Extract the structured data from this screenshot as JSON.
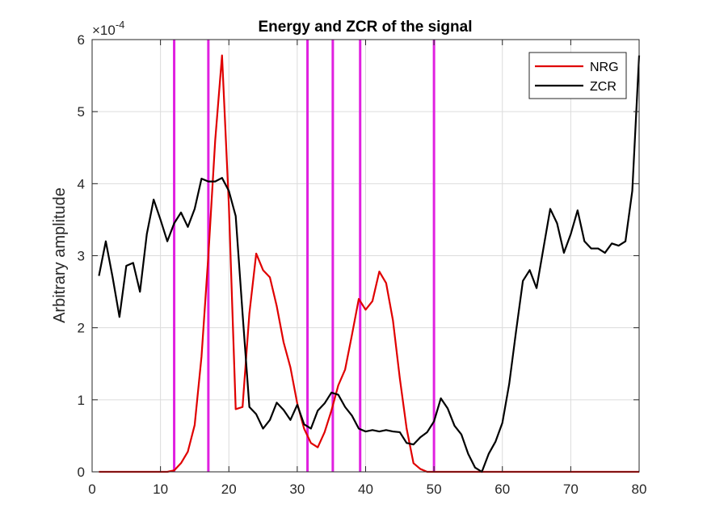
{
  "chart_data": {
    "type": "line",
    "title": "Energy and ZCR  of the signal",
    "xlabel": "",
    "ylabel": "Arbitrary amplitude",
    "xlim": [
      0,
      80
    ],
    "ylim": [
      0,
      6
    ],
    "y_exponent_label": "×10",
    "y_exponent_power": "-4",
    "xticks": [
      0,
      10,
      20,
      30,
      40,
      50,
      60,
      70,
      80
    ],
    "yticks": [
      0,
      1,
      2,
      3,
      4,
      5,
      6
    ],
    "grid": true,
    "legend_position": "top-right",
    "series": [
      {
        "name": "NRG",
        "color": "#e00000",
        "points": [
          [
            1,
            0
          ],
          [
            2,
            0
          ],
          [
            3,
            0
          ],
          [
            4,
            0
          ],
          [
            5,
            0
          ],
          [
            6,
            0
          ],
          [
            7,
            0
          ],
          [
            8,
            0
          ],
          [
            9,
            0
          ],
          [
            10,
            0
          ],
          [
            11,
            0
          ],
          [
            12,
            0.02
          ],
          [
            13,
            0.12
          ],
          [
            14,
            0.28
          ],
          [
            15,
            0.65
          ],
          [
            16,
            1.6
          ],
          [
            17,
            3.0
          ],
          [
            18,
            4.6
          ],
          [
            19,
            5.78
          ],
          [
            20,
            3.7
          ],
          [
            21,
            0.87
          ],
          [
            22,
            0.9
          ],
          [
            23,
            2.2
          ],
          [
            24,
            3.03
          ],
          [
            25,
            2.8
          ],
          [
            26,
            2.7
          ],
          [
            27,
            2.3
          ],
          [
            28,
            1.8
          ],
          [
            29,
            1.45
          ],
          [
            30,
            0.95
          ],
          [
            31,
            0.6
          ],
          [
            32,
            0.4
          ],
          [
            33,
            0.34
          ],
          [
            34,
            0.55
          ],
          [
            35,
            0.85
          ],
          [
            36,
            1.2
          ],
          [
            37,
            1.42
          ],
          [
            38,
            1.9
          ],
          [
            39,
            2.4
          ],
          [
            40,
            2.25
          ],
          [
            41,
            2.37
          ],
          [
            42,
            2.78
          ],
          [
            43,
            2.62
          ],
          [
            44,
            2.1
          ],
          [
            45,
            1.3
          ],
          [
            46,
            0.6
          ],
          [
            47,
            0.12
          ],
          [
            48,
            0.04
          ],
          [
            49,
            0
          ],
          [
            50,
            0
          ],
          [
            51,
            0
          ],
          [
            52,
            0
          ],
          [
            53,
            0
          ],
          [
            54,
            0
          ],
          [
            55,
            0
          ],
          [
            56,
            0
          ],
          [
            57,
            0
          ],
          [
            58,
            0
          ],
          [
            59,
            0
          ],
          [
            60,
            0
          ],
          [
            61,
            0
          ],
          [
            62,
            0
          ],
          [
            63,
            0
          ],
          [
            64,
            0
          ],
          [
            65,
            0
          ],
          [
            66,
            0
          ],
          [
            67,
            0
          ],
          [
            68,
            0
          ],
          [
            69,
            0
          ],
          [
            70,
            0
          ],
          [
            71,
            0
          ],
          [
            72,
            0
          ],
          [
            73,
            0
          ],
          [
            74,
            0
          ],
          [
            75,
            0
          ],
          [
            76,
            0
          ],
          [
            77,
            0
          ],
          [
            78,
            0
          ],
          [
            79,
            0
          ],
          [
            80,
            0
          ]
        ]
      },
      {
        "name": "ZCR",
        "color": "#000000",
        "points": [
          [
            1,
            2.72
          ],
          [
            2,
            3.2
          ],
          [
            3,
            2.7
          ],
          [
            4,
            2.15
          ],
          [
            5,
            2.86
          ],
          [
            6,
            2.9
          ],
          [
            7,
            2.5
          ],
          [
            8,
            3.3
          ],
          [
            9,
            3.78
          ],
          [
            10,
            3.5
          ],
          [
            11,
            3.2
          ],
          [
            12,
            3.45
          ],
          [
            13,
            3.6
          ],
          [
            14,
            3.4
          ],
          [
            15,
            3.65
          ],
          [
            16,
            4.07
          ],
          [
            17,
            4.03
          ],
          [
            18,
            4.03
          ],
          [
            19,
            4.08
          ],
          [
            20,
            3.9
          ],
          [
            21,
            3.55
          ],
          [
            22,
            2.2
          ],
          [
            23,
            0.9
          ],
          [
            24,
            0.8
          ],
          [
            25,
            0.6
          ],
          [
            26,
            0.72
          ],
          [
            27,
            0.96
          ],
          [
            28,
            0.86
          ],
          [
            29,
            0.72
          ],
          [
            30,
            0.93
          ],
          [
            31,
            0.66
          ],
          [
            32,
            0.6
          ],
          [
            33,
            0.85
          ],
          [
            34,
            0.95
          ],
          [
            35,
            1.1
          ],
          [
            36,
            1.07
          ],
          [
            37,
            0.9
          ],
          [
            38,
            0.78
          ],
          [
            39,
            0.6
          ],
          [
            40,
            0.56
          ],
          [
            41,
            0.58
          ],
          [
            42,
            0.56
          ],
          [
            43,
            0.58
          ],
          [
            44,
            0.56
          ],
          [
            45,
            0.55
          ],
          [
            46,
            0.4
          ],
          [
            47,
            0.38
          ],
          [
            48,
            0.48
          ],
          [
            49,
            0.55
          ],
          [
            50,
            0.7
          ],
          [
            51,
            1.02
          ],
          [
            52,
            0.88
          ],
          [
            53,
            0.64
          ],
          [
            54,
            0.52
          ],
          [
            55,
            0.25
          ],
          [
            56,
            0.06
          ],
          [
            57,
            0
          ],
          [
            58,
            0.25
          ],
          [
            59,
            0.42
          ],
          [
            60,
            0.68
          ],
          [
            61,
            1.22
          ],
          [
            62,
            1.95
          ],
          [
            63,
            2.65
          ],
          [
            64,
            2.8
          ],
          [
            65,
            2.55
          ],
          [
            66,
            3.1
          ],
          [
            67,
            3.65
          ],
          [
            68,
            3.45
          ],
          [
            69,
            3.04
          ],
          [
            70,
            3.3
          ],
          [
            71,
            3.63
          ],
          [
            72,
            3.2
          ],
          [
            73,
            3.1
          ],
          [
            74,
            3.1
          ],
          [
            75,
            3.04
          ],
          [
            76,
            3.17
          ],
          [
            77,
            3.14
          ],
          [
            78,
            3.2
          ],
          [
            79,
            3.9
          ],
          [
            80,
            5.78
          ]
        ]
      }
    ],
    "vertical_markers": {
      "color": "#e020e0",
      "x": [
        12,
        17,
        31.5,
        35.2,
        39.2,
        50
      ]
    }
  }
}
